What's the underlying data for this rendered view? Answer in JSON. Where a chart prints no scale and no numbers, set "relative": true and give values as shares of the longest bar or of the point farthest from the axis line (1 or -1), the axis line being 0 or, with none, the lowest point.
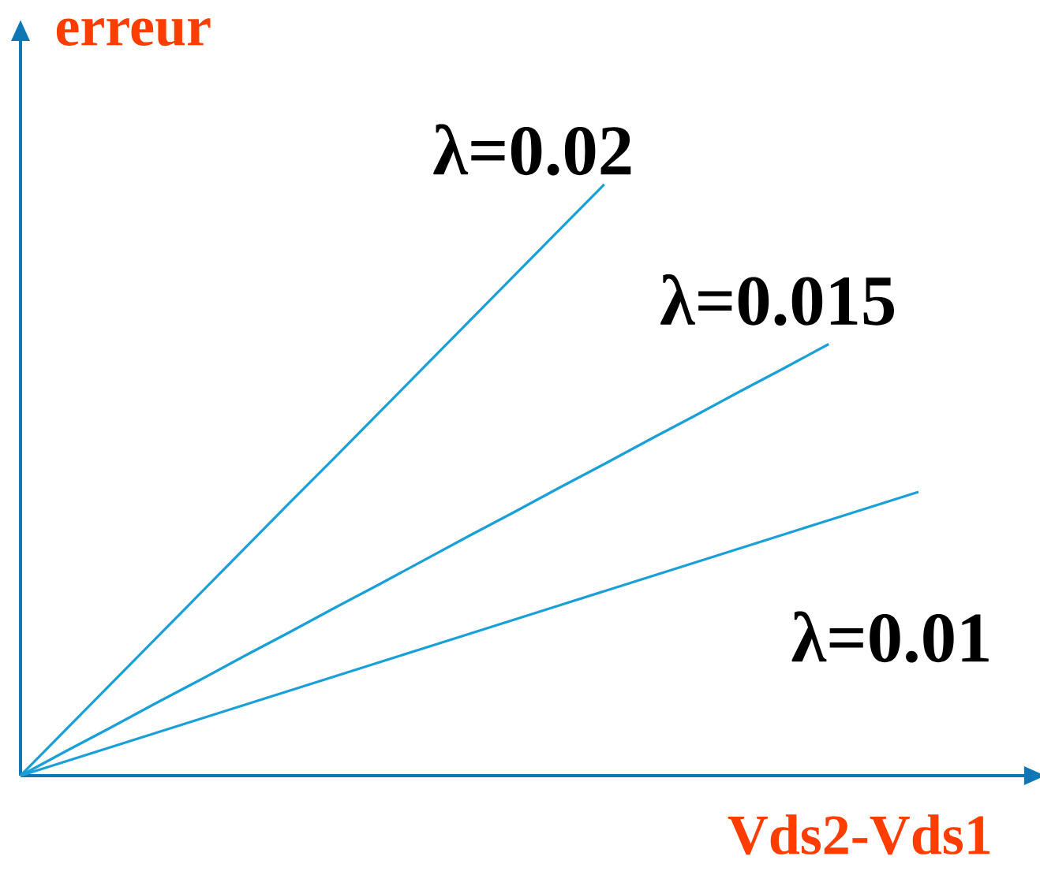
{
  "chart_data": {
    "type": "line",
    "relative": true,
    "xlabel": "Vds2-Vds1",
    "ylabel": "erreur",
    "marker": "none",
    "line_style": "solid",
    "categories": [
      null,
      null,
      null,
      null,
      null,
      null,
      null,
      null,
      null,
      null,
      null,
      null,
      null,
      null,
      null,
      null,
      null,
      null,
      null,
      null,
      null
    ],
    "series": [
      {
        "name": "λ=0.02",
        "color": "#1a9fd6",
        "values": [
          0,
          0.077,
          0.154,
          0.231,
          0.308,
          0.385,
          0.462,
          0.538,
          0.615,
          0.692,
          0.769,
          0.846,
          0.923,
          1,
          null,
          null,
          null,
          null,
          null,
          null,
          null
        ]
      },
      {
        "name": "λ=0.015",
        "color": "#1a9fd6",
        "values": [
          0,
          0.041,
          0.081,
          0.122,
          0.162,
          0.203,
          0.243,
          0.284,
          0.324,
          0.365,
          0.406,
          0.446,
          0.487,
          0.527,
          0.568,
          0.608,
          0.649,
          0.689,
          0.73,
          null,
          null
        ]
      },
      {
        "name": "λ=0.01",
        "color": "#1a9fd6",
        "values": [
          0,
          0.024,
          0.048,
          0.072,
          0.096,
          0.12,
          0.144,
          0.168,
          0.192,
          0.216,
          0.24,
          0.264,
          0.288,
          0.312,
          0.336,
          0.36,
          0.384,
          0.408,
          0.432,
          0.456,
          0.48
        ]
      }
    ]
  }
}
